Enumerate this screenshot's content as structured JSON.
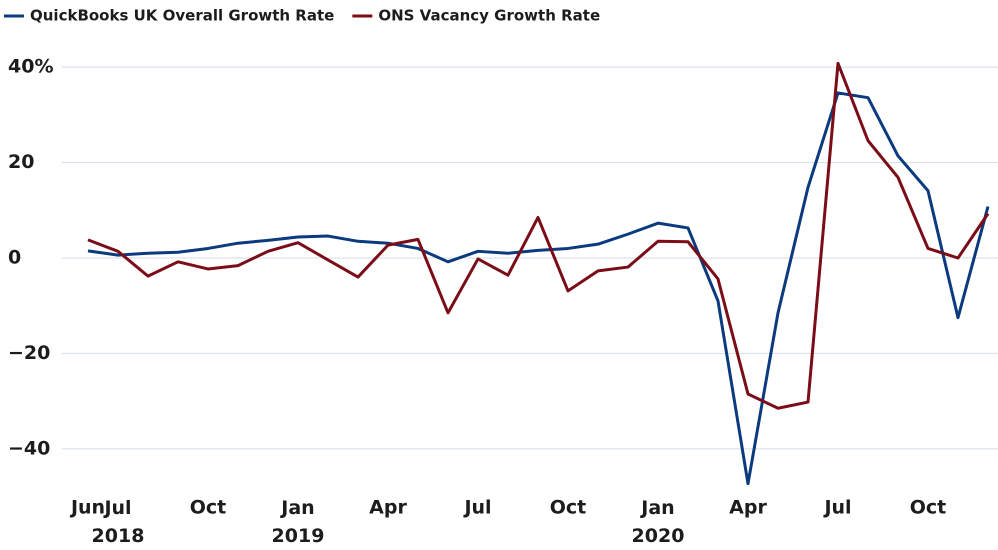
{
  "chart_data": {
    "type": "line",
    "categories": [
      "Jun",
      "Jul 2018",
      null,
      null,
      "Oct",
      null,
      null,
      "Jan 2019",
      null,
      null,
      "Apr",
      null,
      null,
      "Jul",
      null,
      null,
      "Oct",
      null,
      null,
      "Jan 2020",
      null,
      null,
      "Apr",
      null,
      null,
      "Jul",
      null,
      null,
      "Oct",
      null,
      null
    ],
    "series": [
      {
        "name": "QuickBooks UK Overall Growth Rate",
        "color": "#0b3a7e",
        "values": [
          1.5,
          0.6,
          1.0,
          1.2,
          2.0,
          3.1,
          3.7,
          4.4,
          4.6,
          3.5,
          3.1,
          2.0,
          -0.8,
          1.4,
          1.0,
          1.6,
          2.0,
          2.9,
          5.0,
          7.3,
          6.3,
          -9,
          -47.3,
          -11.5,
          14.8,
          34.6,
          33.6,
          21.4,
          14.1,
          -12.5,
          10.8
        ]
      },
      {
        "name": "ONS Vacancy Growth Rate",
        "color": "#7b0d18",
        "values": [
          3.8,
          1.4,
          -3.8,
          -0.8,
          -2.3,
          -1.6,
          1.4,
          3.2,
          -0.4,
          -4.0,
          2.7,
          3.9,
          -11.5,
          -0.2,
          -3.6,
          8.5,
          -6.9,
          -2.7,
          -1.9,
          3.5,
          3.4,
          -4.4,
          -28.5,
          -31.5,
          -30.2,
          40.8,
          24.6,
          16.9,
          2.0,
          0,
          9.3
        ]
      }
    ],
    "ylim": [
      -48,
      41.5
    ],
    "yticks": [
      {
        "value": -40,
        "label": "−40"
      },
      {
        "value": -20,
        "label": "−20"
      },
      0,
      20,
      {
        "value": 40,
        "label": "40%"
      }
    ],
    "grid": true,
    "legend": "top-left"
  }
}
